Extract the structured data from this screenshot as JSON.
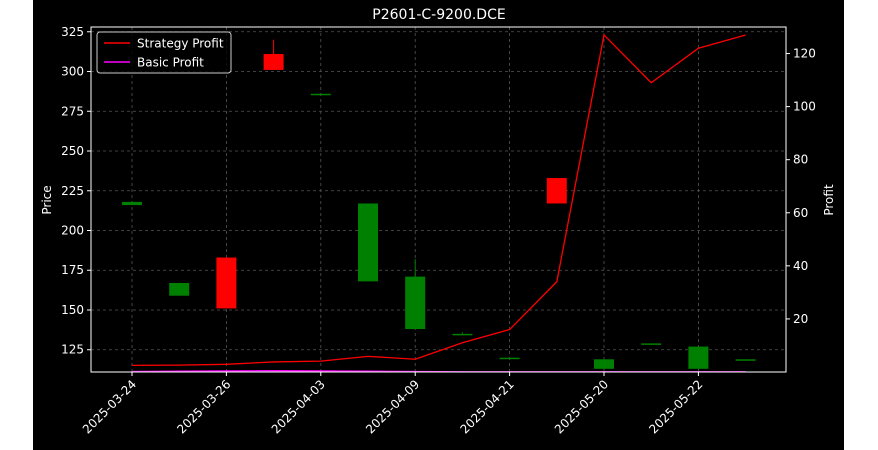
{
  "chart_data": {
    "type": "candlestick",
    "title": "P2601-C-9200.DCE",
    "x_tick_labels": [
      "2025-03-24",
      "2025-03-26",
      "2025-04-03",
      "2025-04-09",
      "2025-04-21",
      "2025-05-20",
      "2025-05-22"
    ],
    "left_axis": {
      "label": "Price",
      "lim": [
        111,
        328
      ],
      "ticks": [
        125,
        150,
        175,
        200,
        225,
        250,
        275,
        300,
        325
      ]
    },
    "right_axis": {
      "label": "Profit",
      "lim": [
        0,
        130
      ],
      "ticks": [
        20,
        40,
        60,
        80,
        100,
        120
      ]
    },
    "grid": true,
    "legend": {
      "position": "top-left",
      "entries": [
        {
          "name": "Strategy Profit",
          "color": "#ff0000"
        },
        {
          "name": "Basic Profit",
          "color": "#ff00ff"
        }
      ]
    },
    "candles": [
      {
        "open": 216,
        "close": 218,
        "high": 218,
        "low": 216
      },
      {
        "open": 159,
        "close": 167,
        "high": 167,
        "low": 159
      },
      {
        "open": 183,
        "close": 151,
        "high": 183,
        "low": 151
      },
      {
        "open": 311,
        "close": 301,
        "high": 320,
        "low": 301
      },
      {
        "open": 286,
        "close": 286,
        "high": 286,
        "low": 286
      },
      {
        "open": 168,
        "close": 217,
        "high": 217,
        "low": 168
      },
      {
        "open": 138,
        "close": 171,
        "high": 182,
        "low": 138
      },
      {
        "open": 135,
        "close": 135,
        "high": 136,
        "low": 135
      },
      {
        "open": 120,
        "close": 120,
        "high": 120,
        "low": 120
      },
      {
        "open": 233,
        "close": 217,
        "high": 233,
        "low": 217
      },
      {
        "open": 113,
        "close": 119,
        "high": 119,
        "low": 113
      },
      {
        "open": 129,
        "close": 129,
        "high": 129,
        "low": 129
      },
      {
        "open": 113,
        "close": 127,
        "high": 127,
        "low": 113
      },
      {
        "open": 119,
        "close": 119,
        "high": 119,
        "low": 119
      }
    ],
    "series": [
      {
        "name": "Strategy Profit",
        "color": "#ff0000",
        "values": [
          2.5,
          2.6,
          2.9,
          3.8,
          4.1,
          5.9,
          4.8,
          11,
          16,
          34,
          127,
          109,
          122,
          127
        ]
      },
      {
        "name": "Basic Profit",
        "color": "#ff00ff",
        "values": [
          0.2,
          0.3,
          0.4,
          0.5,
          0.4,
          0.3,
          0.2,
          0.1,
          0.1,
          0.1,
          0.1,
          0.1,
          0.1,
          0.1
        ]
      }
    ],
    "colors": {
      "up": "#008000",
      "down": "#ff0000",
      "background": "#000000",
      "text": "#ffffff"
    }
  }
}
